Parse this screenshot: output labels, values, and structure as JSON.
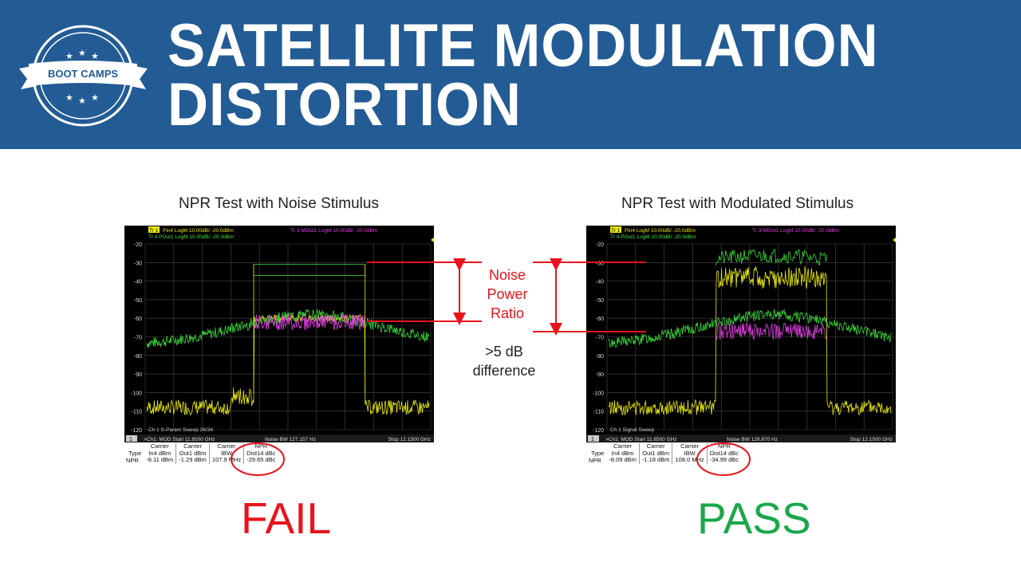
{
  "header": {
    "title_line1": "SATELLITE MODULATION",
    "title_line2": "DISTORTION",
    "logo_text": "BOOT CAMPS",
    "bg_color": "#235b94"
  },
  "left": {
    "title": "NPR Test with Noise Stimulus",
    "trace1": "Pin4 LogM 10.00dB/ -20.0dBm",
    "trace3": "Tr 3  MDist1 LogM 10.00dB/ -20.0dBm",
    "trace4": "Tr 4  POut1 LogM 10.00dB/ -20.0dBm",
    "sweep": "Ch 1 S-Param Sweep 26/34",
    "start": ">Ch1: MOD  Start  11.8500 GHz",
    "noise_bw": "Noise BW  127.157 Hz",
    "stop": "Stop  12.1500 GHz",
    "table": {
      "type_label": "Type",
      "row_label": "NPR",
      "headers": [
        [
          "Carrier",
          "In4 dBm"
        ],
        [
          "Carrier",
          "Out1 dBm"
        ],
        [
          "Carrier",
          "IBW"
        ],
        [
          "NPR",
          "Dist14 dBc"
        ]
      ],
      "values": [
        "-8.11 dBm",
        "-1.29 dBm",
        "107.9 MHz",
        "-29.65 dBc"
      ]
    },
    "result": "FAIL",
    "result_color": "#e8141c"
  },
  "right": {
    "title": "NPR Test with Modulated Stimulus",
    "trace1": "Pin4 LogM 10.00dB/ -20.0dBm",
    "trace3": "Tr 3  MDist1 LogM 10.00dB/ -20.0dBm",
    "trace4": "Tr 4  POut1 LogM 10.00dB/ -20.0dBm",
    "sweep": "Ch 1 Signal Sweep",
    "start": ">Ch1: MOD  Start  11.8500 GHz",
    "noise_bw": "Noise BW  129.870 Hz",
    "stop": "Stop  12.1500 GHz",
    "table": {
      "type_label": "Type",
      "row_label": "NPR",
      "headers": [
        [
          "Carrier",
          "In4 dBm"
        ],
        [
          "Carrier",
          "Out1 dBm"
        ],
        [
          "Carrier",
          "IBW"
        ],
        [
          "NPR",
          "Dist14 dBc"
        ]
      ],
      "values": [
        "-8.09 dBm",
        "-1.18 dBm",
        "108.0 MHz",
        "-34.99 dBc"
      ]
    },
    "result": "PASS",
    "result_color": "#1aa84a"
  },
  "annotation": {
    "npr_label": "Noise\nPower\nRatio",
    "diff_line1": ">5 dB",
    "diff_line2": "difference"
  },
  "screen": {
    "tr1_badge": "Tr 1",
    "channel_badge": "1",
    "y_ticks": [
      "-20",
      "-30",
      "-40",
      "-50",
      "-60",
      "-70",
      "-80",
      "-90",
      "-100",
      "-110",
      "-120"
    ]
  }
}
